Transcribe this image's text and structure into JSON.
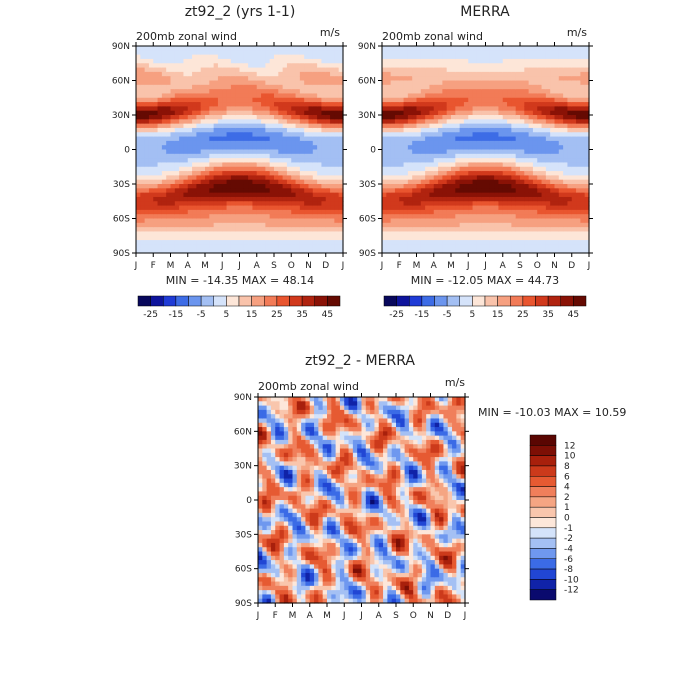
{
  "chart_data": [
    {
      "type": "heatmap",
      "title": "zt92_2 (yrs 1-1)",
      "subtitle": "200mb zonal wind",
      "units": "m/s",
      "x_ticks": [
        "J",
        "F",
        "M",
        "A",
        "M",
        "J",
        "J",
        "A",
        "S",
        "O",
        "N",
        "D",
        "J"
      ],
      "y_ticks": [
        "90N",
        "60N",
        "30N",
        "0",
        "30S",
        "60S",
        "90S"
      ],
      "stats": "MIN = -14.35  MAX =  48.14",
      "colorbar_ticks": [
        "-25",
        "-15",
        "-5",
        "5",
        "15",
        "25",
        "35",
        "45"
      ],
      "levels": [
        -30,
        -25,
        -20,
        -15,
        -10,
        -5,
        0,
        5,
        10,
        15,
        20,
        25,
        30,
        35,
        40,
        45,
        50
      ],
      "data_note": "Monthly zonal-mean 200mb zonal wind; NH jet near 30N peaks in winter (~45 m/s), SH jet near 30S-45S peaks in JJA (~45 m/s); tropical easterlies near equator in NH summer (~-14 m/s)."
    },
    {
      "type": "heatmap",
      "title": "MERRA",
      "subtitle": "200mb zonal wind",
      "units": "m/s",
      "x_ticks": [
        "J",
        "F",
        "M",
        "A",
        "M",
        "J",
        "J",
        "A",
        "S",
        "O",
        "N",
        "D",
        "J"
      ],
      "y_ticks": [
        "90N",
        "60N",
        "30N",
        "0",
        "30S",
        "60S",
        "90S"
      ],
      "stats": "MIN = -12.05  MAX =  44.73",
      "colorbar_ticks": [
        "-25",
        "-15",
        "-5",
        "5",
        "15",
        "25",
        "35",
        "45"
      ],
      "levels": [
        -30,
        -25,
        -20,
        -15,
        -10,
        -5,
        0,
        5,
        10,
        15,
        20,
        25,
        30,
        35,
        40,
        45,
        50
      ],
      "data_note": "Reanalysis climatology of 200mb zonal wind with similar jet structure."
    },
    {
      "type": "heatmap",
      "title": "zt92_2 - MERRA",
      "subtitle": "200mb zonal wind",
      "units": "m/s",
      "x_ticks": [
        "J",
        "F",
        "M",
        "A",
        "M",
        "J",
        "J",
        "A",
        "S",
        "O",
        "N",
        "D",
        "J"
      ],
      "y_ticks": [
        "90N",
        "60N",
        "30N",
        "0",
        "30S",
        "60S",
        "90S"
      ],
      "stats": "MIN = -10.03  MAX =  10.59",
      "colorbar_ticks": [
        "12",
        "10",
        "8",
        "6",
        "4",
        "2",
        "1",
        "0",
        "-1",
        "-2",
        "-4",
        "-6",
        "-8",
        "-10",
        "-12"
      ],
      "levels": [
        -14,
        -12,
        -10,
        -8,
        -6,
        -4,
        -2,
        -1,
        0,
        1,
        2,
        4,
        6,
        8,
        10,
        12,
        14
      ],
      "data_note": "Difference field; mostly within +/-6 m/s with patchy structure."
    }
  ],
  "colors": {
    "full": [
      "#08085c",
      "#0e149c",
      "#1f3bd6",
      "#3d6ce6",
      "#6b95ee",
      "#a3bff3",
      "#d5e3fa",
      "#fde6d8",
      "#f9c3ab",
      "#f6a080",
      "#f27b57",
      "#e9552f",
      "#d1391c",
      "#b0230f",
      "#8a1206",
      "#650a02"
    ],
    "diff": [
      "#0a0a6e",
      "#1023a8",
      "#2146d4",
      "#3b6be6",
      "#6f98ef",
      "#a4c0f4",
      "#d4e3fa",
      "#fde7da",
      "#f9c6ad",
      "#f5a583",
      "#f07f5b",
      "#e65a32",
      "#cc3a1b",
      "#a8200c",
      "#7d0f05",
      "#5a0602"
    ]
  }
}
